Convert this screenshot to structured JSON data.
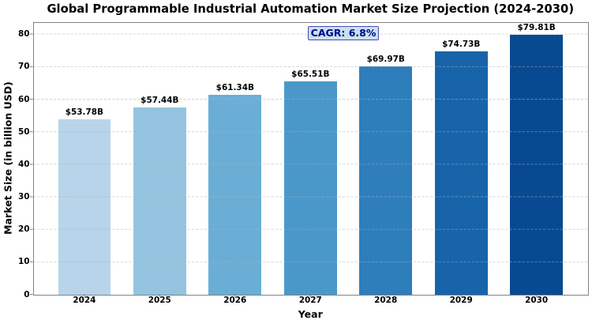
{
  "chart_data": {
    "type": "bar",
    "title": "Global Programmable Industrial Automation Market Size Projection (2024-2030)",
    "xlabel": "Year",
    "ylabel": "Market Size (in billion USD)",
    "categories": [
      "2024",
      "2025",
      "2026",
      "2027",
      "2028",
      "2029",
      "2030"
    ],
    "values": [
      53.78,
      57.44,
      61.34,
      65.51,
      69.97,
      74.73,
      79.81
    ],
    "bar_labels": [
      "$53.78B",
      "$57.44B",
      "$61.34B",
      "$65.51B",
      "$69.97B",
      "$74.73B",
      "$79.81B"
    ],
    "bar_colors": [
      "#b7d4ea",
      "#94c4df",
      "#6aaed6",
      "#4a98c9",
      "#2e7ebc",
      "#1764ab",
      "#084a91"
    ],
    "ylim": [
      0,
      83.8
    ],
    "yticks": [
      0,
      10,
      20,
      30,
      40,
      50,
      60,
      70,
      80
    ],
    "grid": "y-dashed",
    "legend_position": "none",
    "annotation": {
      "text": "CAGR: 6.8%",
      "text_color": "#00008b",
      "background": "#c7e1ee",
      "border_color": "#4343c0"
    }
  }
}
